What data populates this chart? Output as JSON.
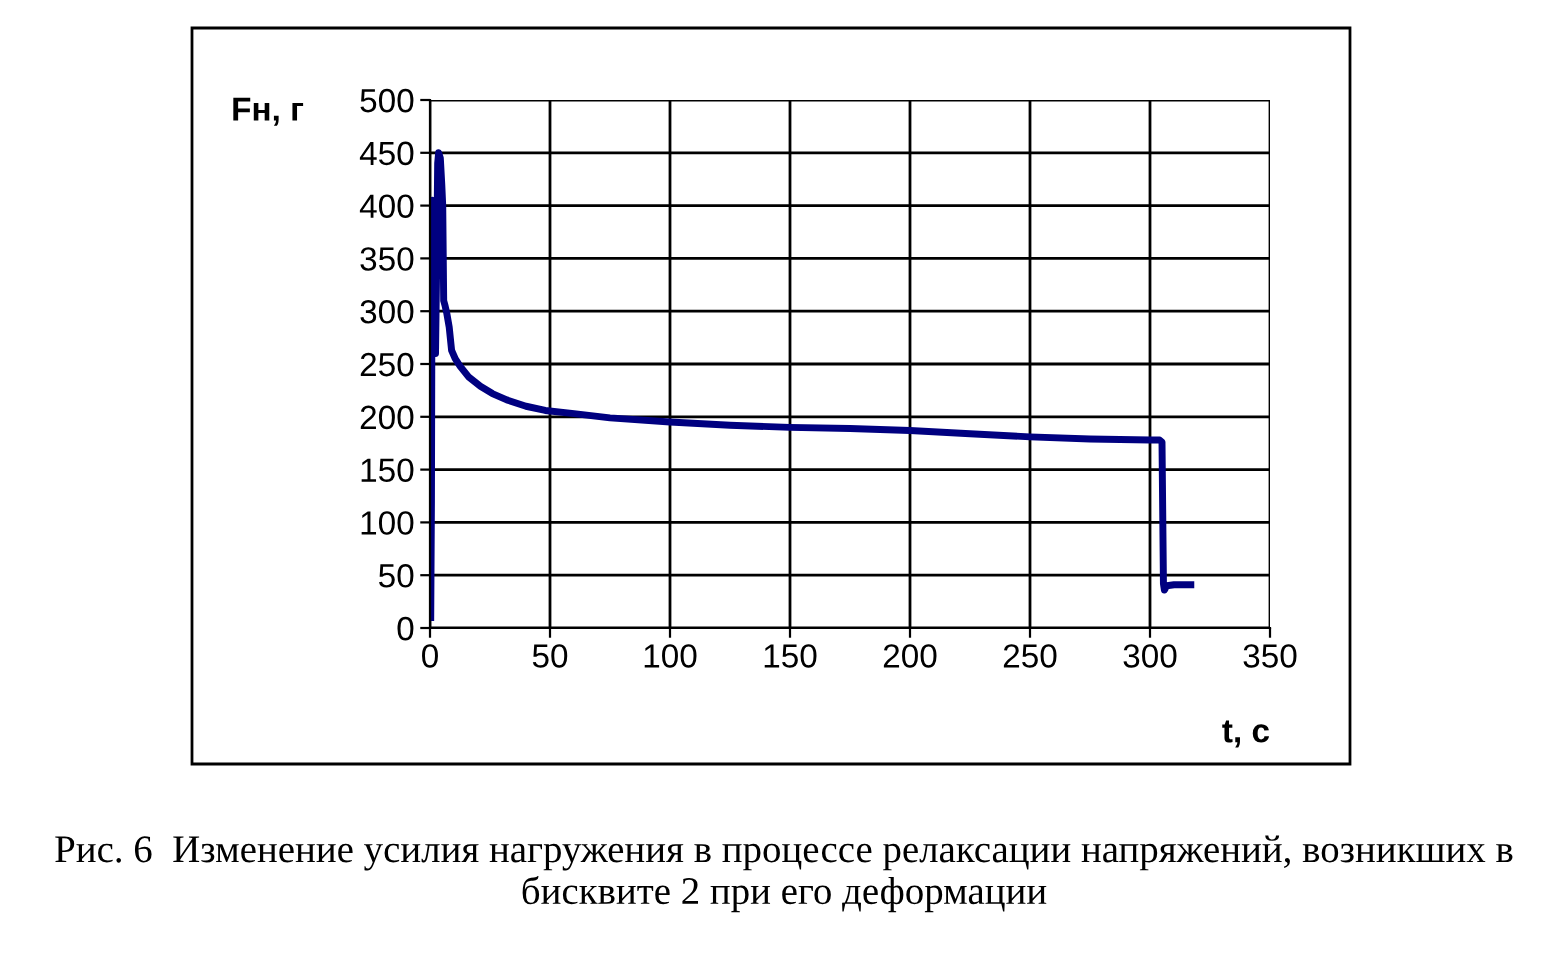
{
  "chart_data": {
    "type": "line",
    "xlabel": "t, с",
    "ylabel": "Fн, г",
    "annotations": [
      "Рис. 6  Изменение усилия нагружения в процессе релаксации напряжений, возникших в бисквите 2 при его деформации"
    ],
    "x": [
      0.3,
      0.6,
      0.9,
      1.2,
      1.6,
      2.0,
      2.3,
      2.7,
      3.2,
      3.6,
      4.3,
      4.9,
      5.3,
      5.7,
      6.3,
      7,
      8,
      9,
      10.5,
      12.5,
      16,
      21,
      26,
      32,
      40,
      48,
      60,
      75,
      100,
      125,
      150,
      175,
      200,
      225,
      250,
      275,
      300,
      304,
      305,
      305.6,
      306,
      307,
      310,
      317
    ],
    "series": [
      {
        "color": "#000080",
        "values": [
          10,
          120,
          400,
          405,
          400,
          300,
          260,
          330,
          440,
          450,
          445,
          420,
          400,
          310,
          305,
          298,
          285,
          263,
          255,
          248,
          238,
          229,
          222,
          216,
          210,
          206,
          203,
          199,
          195,
          192,
          190,
          189,
          187,
          184,
          181,
          179,
          178,
          178,
          176,
          42,
          36,
          40,
          41,
          41
        ]
      }
    ],
    "xlim": [
      0,
      350
    ],
    "ylim": [
      0,
      500
    ],
    "xticks": [
      0,
      50,
      100,
      150,
      200,
      250,
      300,
      350
    ],
    "yticks": [
      0,
      50,
      100,
      150,
      200,
      250,
      300,
      350,
      400,
      450,
      500
    ],
    "grid": true
  }
}
